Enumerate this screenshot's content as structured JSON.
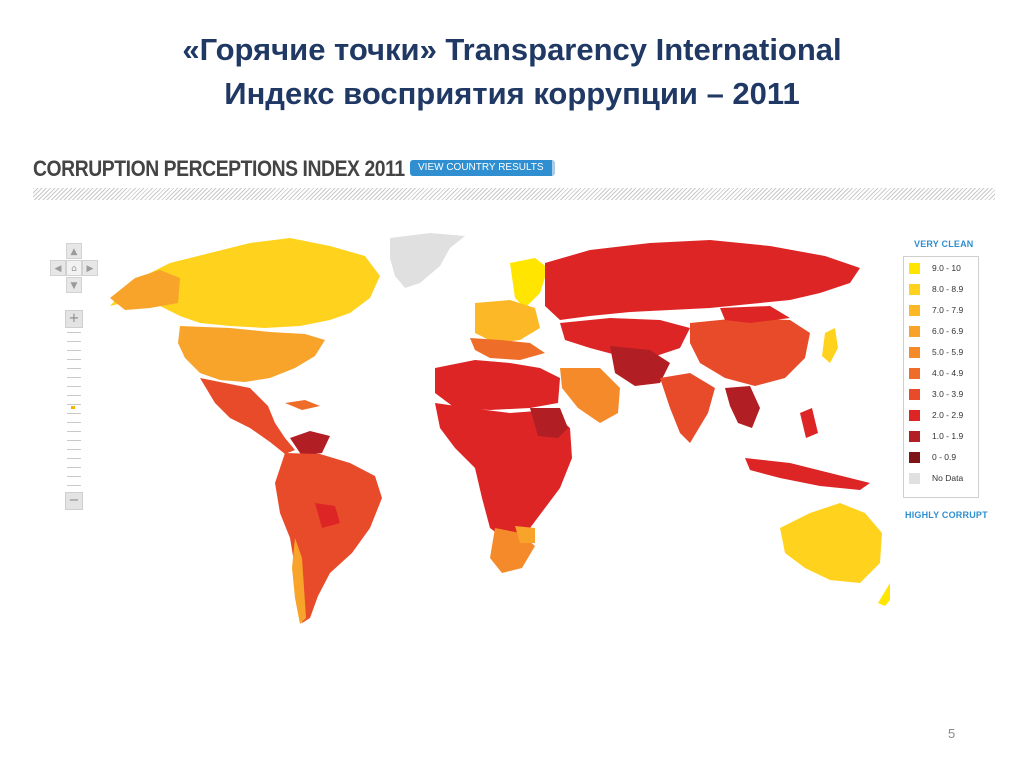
{
  "slide": {
    "title_line1": "«Горячие точки» Transparency International",
    "title_line2": "Индекс восприятия коррупции – 2011",
    "page_number": "5"
  },
  "map": {
    "header_title": "CORRUPTION PERCEPTIONS INDEX 2011",
    "view_button_label": "VIEW COUNTRY RESULTS",
    "legend_top": "VERY CLEAN",
    "legend_bottom": "HIGHLY CORRUPT",
    "legend": [
      {
        "label": "9.0 - 10",
        "color": "#ffe500"
      },
      {
        "label": "8.0 - 8.9",
        "color": "#ffd21e"
      },
      {
        "label": "7.0 - 7.9",
        "color": "#fcb827"
      },
      {
        "label": "6.0 - 6.9",
        "color": "#f8a32a"
      },
      {
        "label": "5.0 - 5.9",
        "color": "#f58a2b"
      },
      {
        "label": "4.0 - 4.9",
        "color": "#ee6d29"
      },
      {
        "label": "3.0 - 3.9",
        "color": "#e84b2a"
      },
      {
        "label": "2.0 - 2.9",
        "color": "#de2526"
      },
      {
        "label": "1.0 - 1.9",
        "color": "#b11e23"
      },
      {
        "label": "0 - 0.9",
        "color": "#7f1416"
      },
      {
        "label": "No Data",
        "color": "#e0e0e0"
      }
    ],
    "icons": {
      "pan_up": "chevron-up-icon",
      "pan_left": "chevron-left-icon",
      "home": "home-icon",
      "pan_right": "chevron-right-icon",
      "pan_down": "chevron-down-icon",
      "zoom_in": "plus-icon",
      "zoom_out": "minus-icon"
    }
  }
}
